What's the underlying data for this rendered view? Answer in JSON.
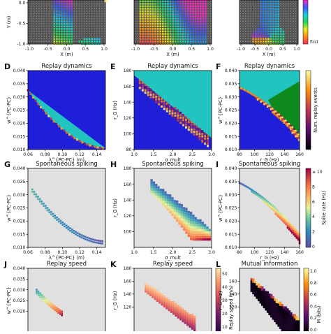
{
  "chart_data": [
    {
      "id": "top-left",
      "type": "heatmap",
      "ylabel": "Y (m)",
      "xlabel": "X (m)",
      "xlim": [
        -1.0,
        1.0
      ],
      "ylim": [
        -1.0,
        1.0
      ],
      "xticks": [
        "-1.0",
        "-0.5",
        "0.0",
        "0.5",
        "1.0"
      ],
      "yticks": [
        "-1.0",
        "-0.5",
        "0.0"
      ],
      "pattern": "u-turn"
    },
    {
      "id": "top-mid",
      "type": "heatmap",
      "xlabel": "X (m)",
      "xlim": [
        -1.0,
        1.0
      ],
      "ylim": [
        -1.0,
        1.0
      ],
      "xticks": [
        "-1.0",
        "-0.5",
        "0.0",
        "0.5",
        "1.0"
      ],
      "pattern": "full-field"
    },
    {
      "id": "top-right",
      "type": "heatmap",
      "xlabel": "X (m)",
      "xlim": [
        -1.0,
        1.0
      ],
      "ylim": [
        -1.0,
        1.0
      ],
      "xticks": [
        "-1.0",
        "-0.5",
        "0.0",
        "0.5",
        "1.0"
      ],
      "pattern": "loop",
      "colorbar_label": "first"
    },
    {
      "id": "D",
      "type": "heatmap",
      "panel": "D",
      "title": "Replay dynamics",
      "ylabel": "w^{PC-PC}",
      "xlabel": "λ^{PC-PC} (m)",
      "xlim": [
        0.06,
        0.15
      ],
      "ylim": [
        0.01,
        0.04
      ],
      "xticks": [
        "0.06",
        "0.08",
        "0.10",
        "0.12",
        "0.14"
      ],
      "xtick_values": [
        0.06,
        0.08,
        0.1,
        0.12,
        0.14
      ],
      "yticks": [
        "0.010",
        "0.015",
        "0.020",
        "0.025",
        "0.030",
        "0.035",
        "0.040"
      ],
      "ytick_values": [
        0.01,
        0.015,
        0.02,
        0.025,
        0.03,
        0.035,
        0.04
      ],
      "regions": [
        "dark-blue",
        "cyan",
        "boundary"
      ]
    },
    {
      "id": "E",
      "type": "heatmap",
      "panel": "E",
      "title": "Replay dynamics",
      "ylabel": "r_G (Hz)",
      "xlabel": "σ_mult",
      "xlim": [
        1.0,
        3.0
      ],
      "ylim": [
        80,
        180
      ],
      "xticks": [
        "1.0",
        "1.5",
        "2.0",
        "2.5",
        "3.0"
      ],
      "xtick_values": [
        1.0,
        1.5,
        2.0,
        2.5,
        3.0
      ],
      "yticks": [
        "80",
        "100",
        "120",
        "140",
        "160",
        "180"
      ],
      "ytick_values": [
        80,
        100,
        120,
        140,
        160,
        180
      ],
      "regions": [
        "dark-blue",
        "cyan",
        "green",
        "boundary"
      ]
    },
    {
      "id": "F",
      "type": "heatmap",
      "panel": "F",
      "title": "Replay dynamics",
      "ylabel": "w^{PC-PC}",
      "xlabel": "r_G (Hz)",
      "xlim": [
        80,
        160
      ],
      "ylim": [
        0.01,
        0.04
      ],
      "xticks": [
        "80",
        "100",
        "120",
        "140",
        "160"
      ],
      "xtick_values": [
        80,
        100,
        120,
        140,
        160
      ],
      "yticks": [
        "0.010",
        "0.015",
        "0.020",
        "0.025",
        "0.030",
        "0.035",
        "0.040"
      ],
      "ytick_values": [
        0.01,
        0.015,
        0.02,
        0.025,
        0.03,
        0.035,
        0.04
      ],
      "regions": [
        "dark-blue",
        "cyan",
        "green",
        "boundary"
      ],
      "colorbar_label": "Num. replay events"
    },
    {
      "id": "G",
      "type": "heatmap",
      "panel": "G",
      "title": "Spontaneous spiking",
      "ylabel": "w^{PC-PC}",
      "xlabel": "λ^{PC-PC} (m)",
      "xlim": [
        0.06,
        0.15
      ],
      "ylim": [
        0.01,
        0.04
      ],
      "xticks": [
        "0.06",
        "0.08",
        "0.10",
        "0.12",
        "0.14"
      ],
      "xtick_values": [
        0.06,
        0.08,
        0.1,
        0.12,
        0.14
      ],
      "yticks": [
        "0.010",
        "0.015",
        "0.020",
        "0.025",
        "0.030",
        "0.035",
        "0.040"
      ],
      "ytick_values": [
        0.01,
        0.015,
        0.02,
        0.025,
        0.03,
        0.035,
        0.04
      ],
      "band": "thin"
    },
    {
      "id": "H",
      "type": "heatmap",
      "panel": "H",
      "title": "Spontaneous spiking",
      "ylabel": "r_G (Hz)",
      "xlabel": "σ_mult",
      "xlim": [
        1.0,
        3.0
      ],
      "ylim": [
        80,
        180
      ],
      "xticks": [
        "1.0",
        "1.5",
        "2.0",
        "2.5",
        "3.0"
      ],
      "xtick_values": [
        1.0,
        1.5,
        2.0,
        2.5,
        3.0
      ],
      "yticks": [
        "100",
        "120",
        "140",
        "160",
        "180"
      ],
      "ytick_values": [
        100,
        120,
        140,
        160,
        180
      ],
      "band": "wedge"
    },
    {
      "id": "I",
      "type": "heatmap",
      "panel": "I",
      "title": "Spontaneous spiking",
      "ylabel": "w^{PC-PC}",
      "xlabel": "r_G (Hz)",
      "xlim": [
        80,
        160
      ],
      "ylim": [
        0.01,
        0.04
      ],
      "xticks": [
        "80",
        "100",
        "120",
        "140",
        "160"
      ],
      "xtick_values": [
        80,
        100,
        120,
        140,
        160
      ],
      "yticks": [
        "0.010",
        "0.015",
        "0.020",
        "0.025",
        "0.030",
        "0.035",
        "0.040"
      ],
      "ytick_values": [
        0.01,
        0.015,
        0.02,
        0.025,
        0.03,
        0.035,
        0.04
      ],
      "band": "thin",
      "colorbar_label": "Spike rate (Hz)",
      "colorbar_ticks": [
        "0",
        "2",
        "4",
        "6",
        "8",
        "≥ 10"
      ]
    },
    {
      "id": "J",
      "type": "heatmap",
      "panel": "J",
      "title": "Replay speed",
      "ylabel": "w^{PC-PC}",
      "xlim": [
        0.06,
        0.15
      ],
      "ylim": [
        0.01,
        0.04
      ],
      "yticks": [
        "0.020",
        "0.025",
        "0.030",
        "0.035",
        "0.040"
      ],
      "ytick_values": [
        0.02,
        0.025,
        0.03,
        0.035,
        0.04
      ],
      "band": "thin"
    },
    {
      "id": "K",
      "type": "heatmap",
      "panel": "K",
      "title": "Replay speed",
      "ylabel": "r_G (Hz)",
      "xlim": [
        1.0,
        3.0
      ],
      "ylim": [
        80,
        180
      ],
      "yticks": [
        "120",
        "140",
        "160",
        "180"
      ],
      "ytick_values": [
        120,
        140,
        160,
        180
      ],
      "band": "diagonal",
      "colorbar_label": "Replay speed (m/s)",
      "colorbar_ticks": [
        "10",
        "20",
        "30",
        "40",
        "50"
      ]
    },
    {
      "id": "L",
      "type": "heatmap",
      "panel": "L",
      "title": "Mutual information",
      "ylabel": "r_G (Hz)",
      "xlim": [
        1.0,
        3.0
      ],
      "ylim": [
        80,
        180
      ],
      "yticks": [
        "120",
        "140",
        "160"
      ],
      "ytick_values": [
        120,
        140,
        160
      ],
      "band": "wedge-black",
      "colorbar_label": "M (bits)",
      "colorbar_ticks": [
        "0.0",
        "0.2",
        "0.4",
        "0.6",
        "0.8",
        "1.0"
      ]
    }
  ],
  "colors": {
    "dark_blue": "#1f1ed8",
    "cyan": "#22c4c0",
    "green": "#0e8a1c",
    "panel_bg": "#e0e0e0",
    "grid_bg": "#555555"
  }
}
